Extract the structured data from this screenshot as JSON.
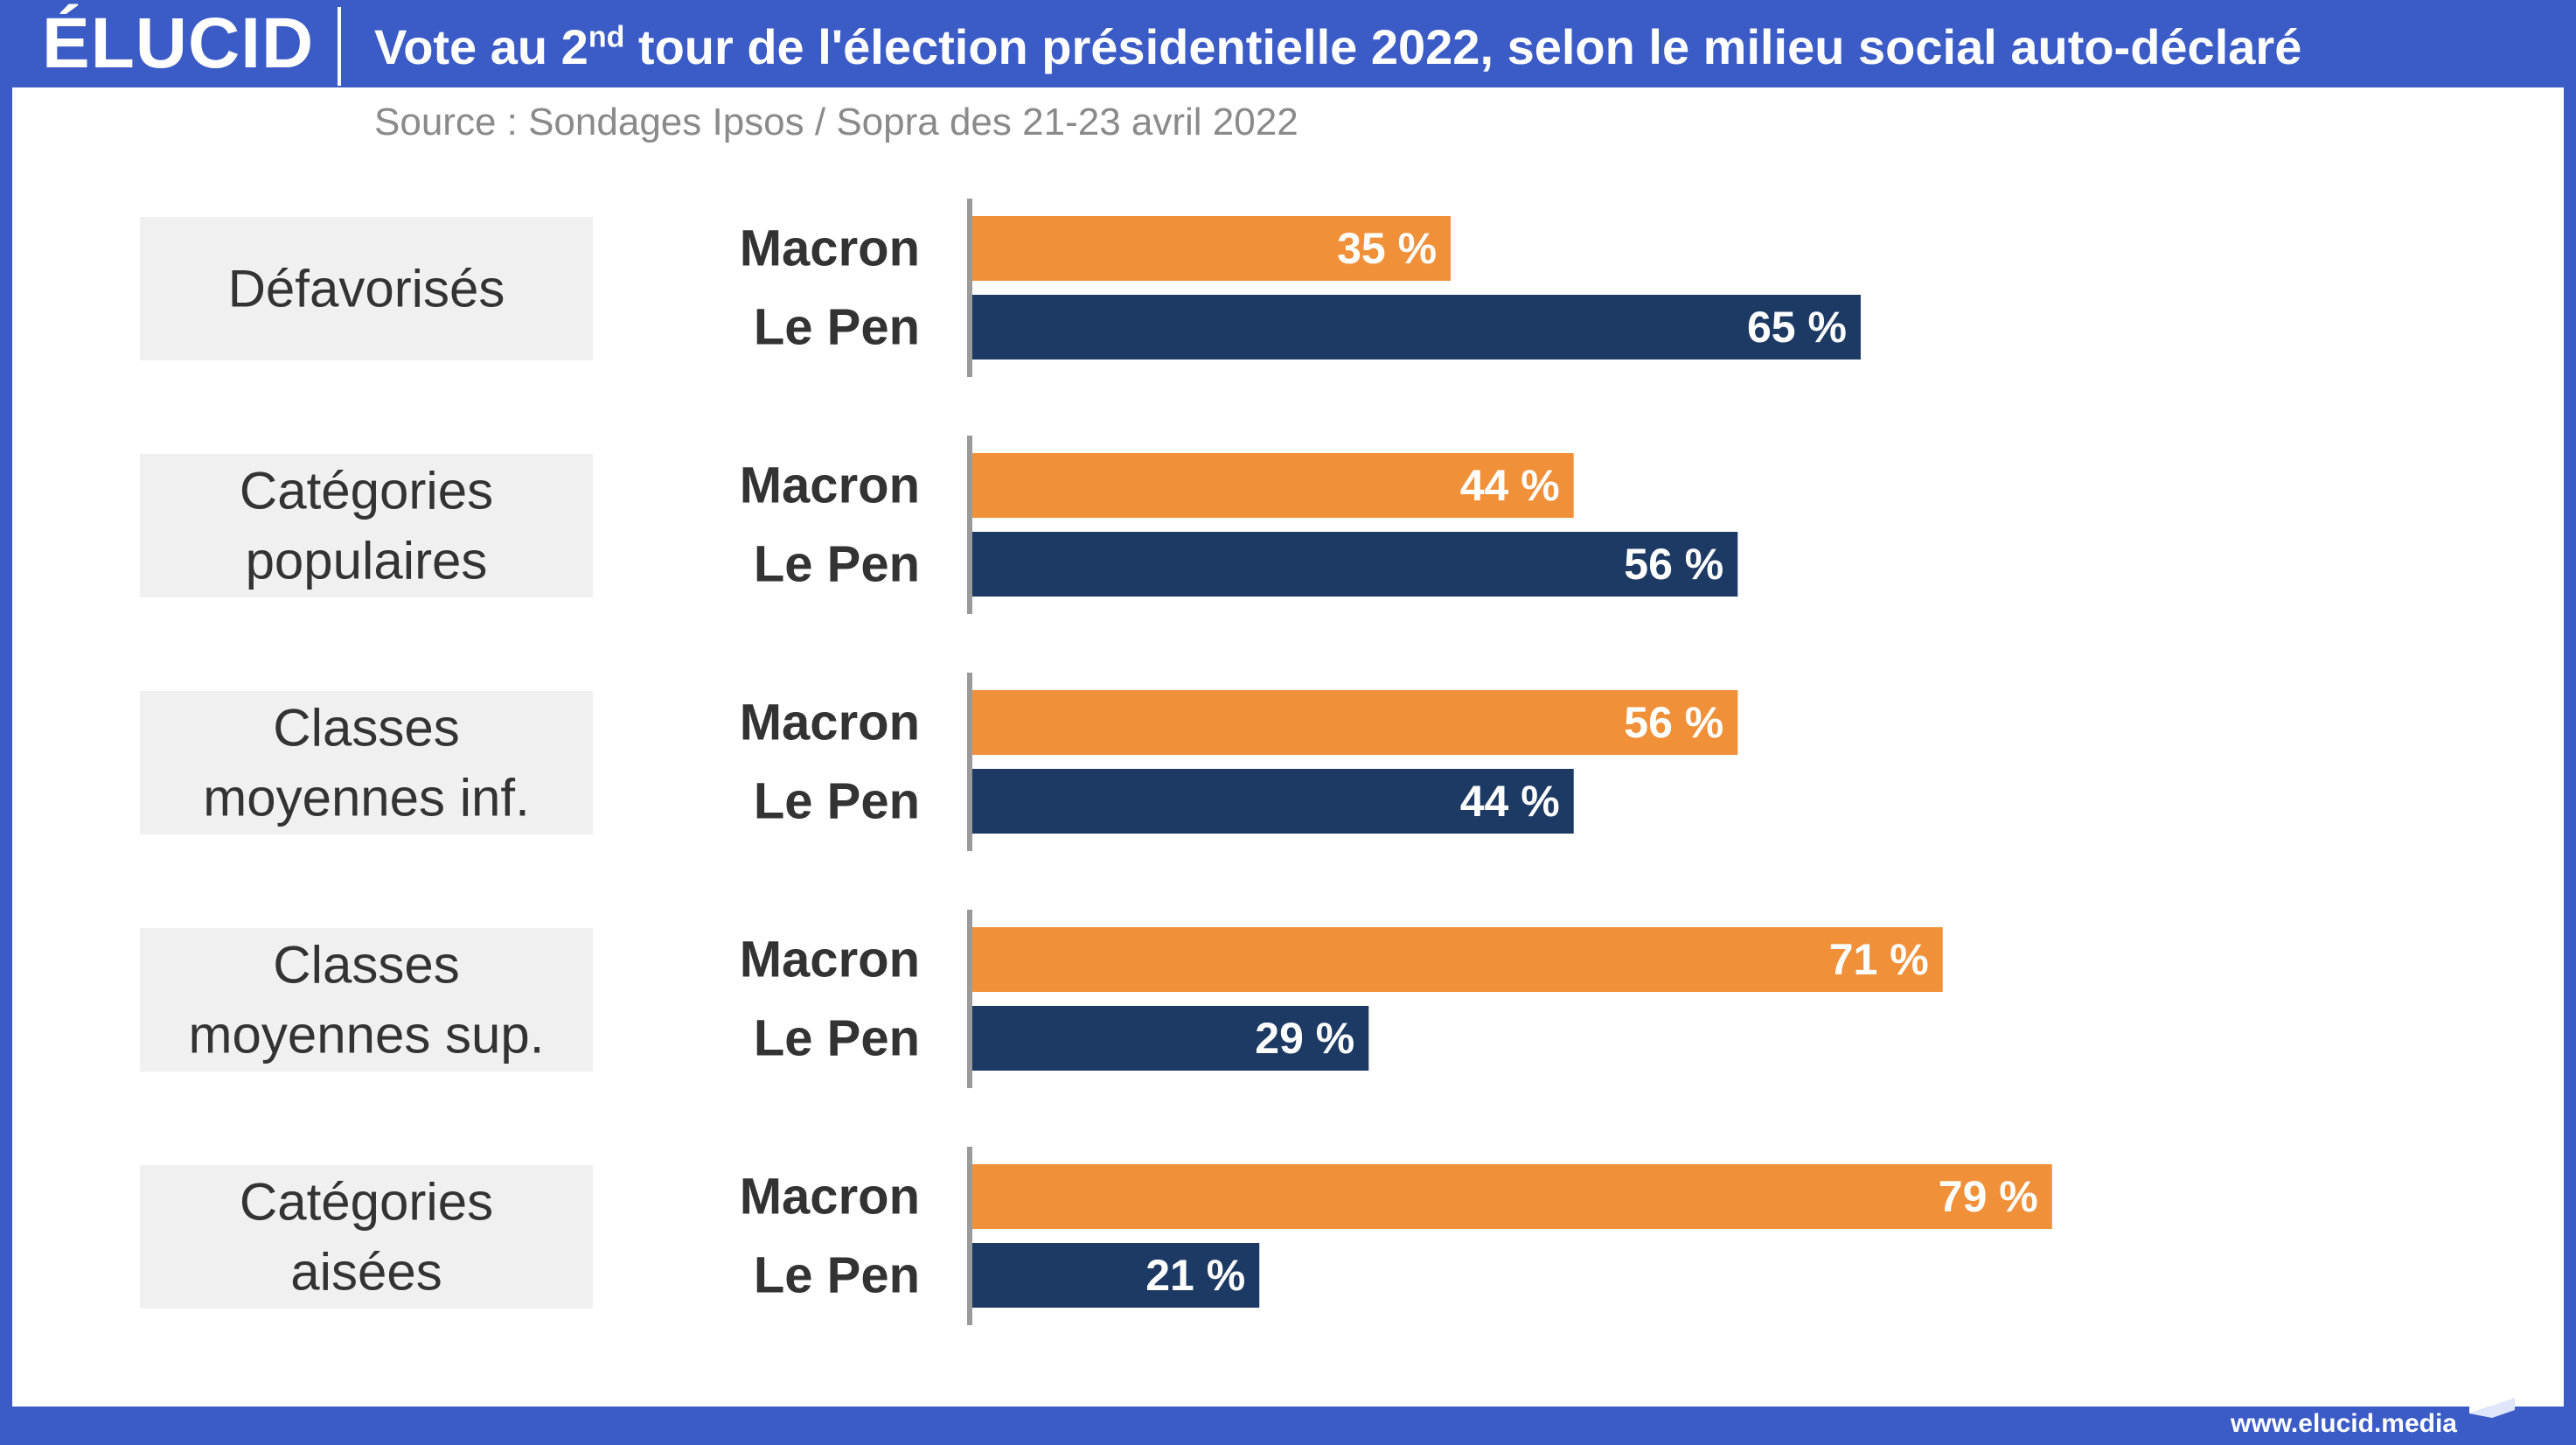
{
  "header": {
    "logo": "ÉLUCID",
    "title_pre": "Vote au 2",
    "title_sup": "nd",
    "title_post": " tour de l'élection présidentielle 2022, selon le milieu social auto-déclaré"
  },
  "source": "Source : Sondages Ipsos / Sopra des 21-23 avril 2022",
  "footer": {
    "url": "www.elucid.media"
  },
  "colors": {
    "brand": "#3b5bc6",
    "macron": "#f0913a",
    "lepen": "#1c3a63",
    "category_bg": "#f0f0f0"
  },
  "chart_data": {
    "type": "bar",
    "orientation": "horizontal",
    "title": "Vote au 2nd tour de l'élection présidentielle 2022, selon le milieu social auto-déclaré",
    "categories": [
      "Défavorisés",
      "Catégories populaires",
      "Classes moyennes inf.",
      "Classes moyennes sup.",
      "Catégories aisées"
    ],
    "category_lines": [
      [
        "Défavorisés"
      ],
      [
        "Catégories",
        "populaires"
      ],
      [
        "Classes",
        "moyennes inf."
      ],
      [
        "Classes",
        "moyennes sup."
      ],
      [
        "Catégories",
        "aisées"
      ]
    ],
    "series": [
      {
        "name": "Macron",
        "values": [
          35,
          44,
          56,
          71,
          79
        ],
        "color": "#f0913a"
      },
      {
        "name": "Le Pen",
        "values": [
          65,
          56,
          44,
          29,
          21
        ],
        "color": "#1c3a63"
      }
    ],
    "unit": " %",
    "xlim": [
      0,
      100
    ],
    "grid": false,
    "legend": "none"
  }
}
